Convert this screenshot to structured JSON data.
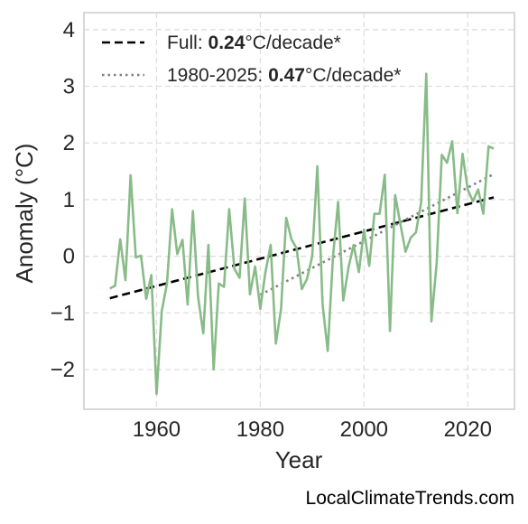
{
  "chart_data": {
    "type": "line",
    "xlabel": "Year",
    "ylabel": "Anomaly (°C)",
    "xlim": [
      1946,
      2029
    ],
    "ylim": [
      -2.7,
      4.3
    ],
    "xticks": [
      1960,
      1980,
      2000,
      2020
    ],
    "xtick_labels": [
      "1960",
      "1980",
      "2000",
      "2020"
    ],
    "yticks": [
      -2,
      -1,
      0,
      1,
      2,
      3,
      4
    ],
    "ytick_labels": [
      "−2",
      "−1",
      "0",
      "1",
      "2",
      "3",
      "4"
    ],
    "grid": true,
    "legend_position": "top-left",
    "series": [
      {
        "color": "#88bb88",
        "x": [
          1951,
          1952,
          1953,
          1954,
          1955,
          1956,
          1957,
          1958,
          1959,
          1960,
          1961,
          1962,
          1963,
          1964,
          1965,
          1966,
          1967,
          1968,
          1969,
          1970,
          1971,
          1972,
          1973,
          1974,
          1975,
          1976,
          1977,
          1978,
          1979,
          1980,
          1981,
          1982,
          1983,
          1984,
          1985,
          1986,
          1987,
          1988,
          1989,
          1990,
          1991,
          1992,
          1993,
          1994,
          1995,
          1996,
          1997,
          1998,
          1999,
          2000,
          2001,
          2002,
          2003,
          2004,
          2005,
          2006,
          2007,
          2008,
          2009,
          2010,
          2011,
          2012,
          2013,
          2014,
          2015,
          2016,
          2017,
          2018,
          2019,
          2020,
          2021,
          2022,
          2023,
          2024,
          2025
        ],
        "y": [
          -0.57,
          -0.52,
          0.3,
          -0.42,
          1.43,
          -0.02,
          0.01,
          -0.75,
          -0.33,
          -2.43,
          -0.97,
          -0.48,
          0.83,
          0.04,
          0.29,
          -0.85,
          0.8,
          -0.71,
          -1.36,
          0.2,
          -2.0,
          -0.48,
          -0.54,
          0.83,
          -0.22,
          -0.38,
          1.02,
          -0.67,
          -0.18,
          -0.93,
          -0.28,
          0.2,
          -1.54,
          -0.93,
          0.68,
          0.3,
          0.14,
          -0.58,
          -0.4,
          0.0,
          1.59,
          -0.85,
          -1.67,
          -0.02,
          0.96,
          -0.78,
          -0.2,
          0.2,
          -0.28,
          0.47,
          -0.17,
          0.75,
          0.75,
          1.44,
          -1.32,
          1.08,
          0.57,
          0.08,
          0.33,
          0.42,
          0.95,
          3.22,
          -1.15,
          -0.12,
          1.79,
          1.65,
          2.03,
          0.76,
          1.81,
          1.17,
          0.97,
          1.18,
          0.75,
          1.94,
          1.9
        ]
      }
    ],
    "trends": [
      {
        "label_prefix": "Full: ",
        "rate": "0.24",
        "label_suffix": "°C/decade*",
        "style": "dashed",
        "color": "#000000",
        "x": [
          1951,
          2025
        ],
        "y": [
          -0.74,
          1.04
        ]
      },
      {
        "label_prefix": "1980-2025: ",
        "rate": "0.47",
        "label_suffix": "°C/decade*",
        "style": "dotted",
        "color": "#808080",
        "x": [
          1980,
          2025
        ],
        "y": [
          -0.68,
          1.45
        ]
      }
    ]
  },
  "credit": "LocalClimateTrends.com"
}
